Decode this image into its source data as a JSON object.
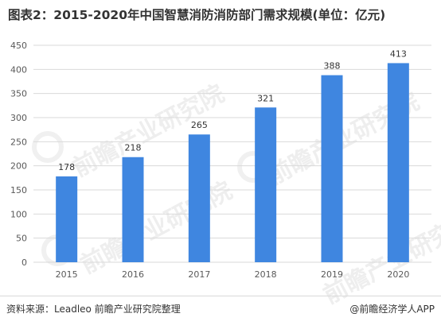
{
  "header": {
    "title": "图表2：2015-2020年中国智慧消防消防部门需求规模(单位：亿元)"
  },
  "footer": {
    "source": "资料来源：Leadleo 前瞻产业研究院整理",
    "credit": "@前瞻经济学人APP"
  },
  "watermarks": {
    "text": "前瞻产业研究院"
  },
  "colors": {
    "bar": "#3f86e0",
    "grid": "#d9d9d9",
    "axis_text": "#595959"
  },
  "chart_data": {
    "type": "bar",
    "categories": [
      "2015",
      "2016",
      "2017",
      "2018",
      "2019",
      "2020"
    ],
    "values": [
      178,
      218,
      265,
      321,
      388,
      413
    ],
    "title": "图表2：2015-2020年中国智慧消防消防部门需求规模(单位：亿元)",
    "xlabel": "",
    "ylabel": "",
    "ylim": [
      0,
      450
    ],
    "yticks": [
      0,
      50,
      100,
      150,
      200,
      250,
      300,
      350,
      400,
      450
    ],
    "grid": true,
    "data_labels": true
  }
}
